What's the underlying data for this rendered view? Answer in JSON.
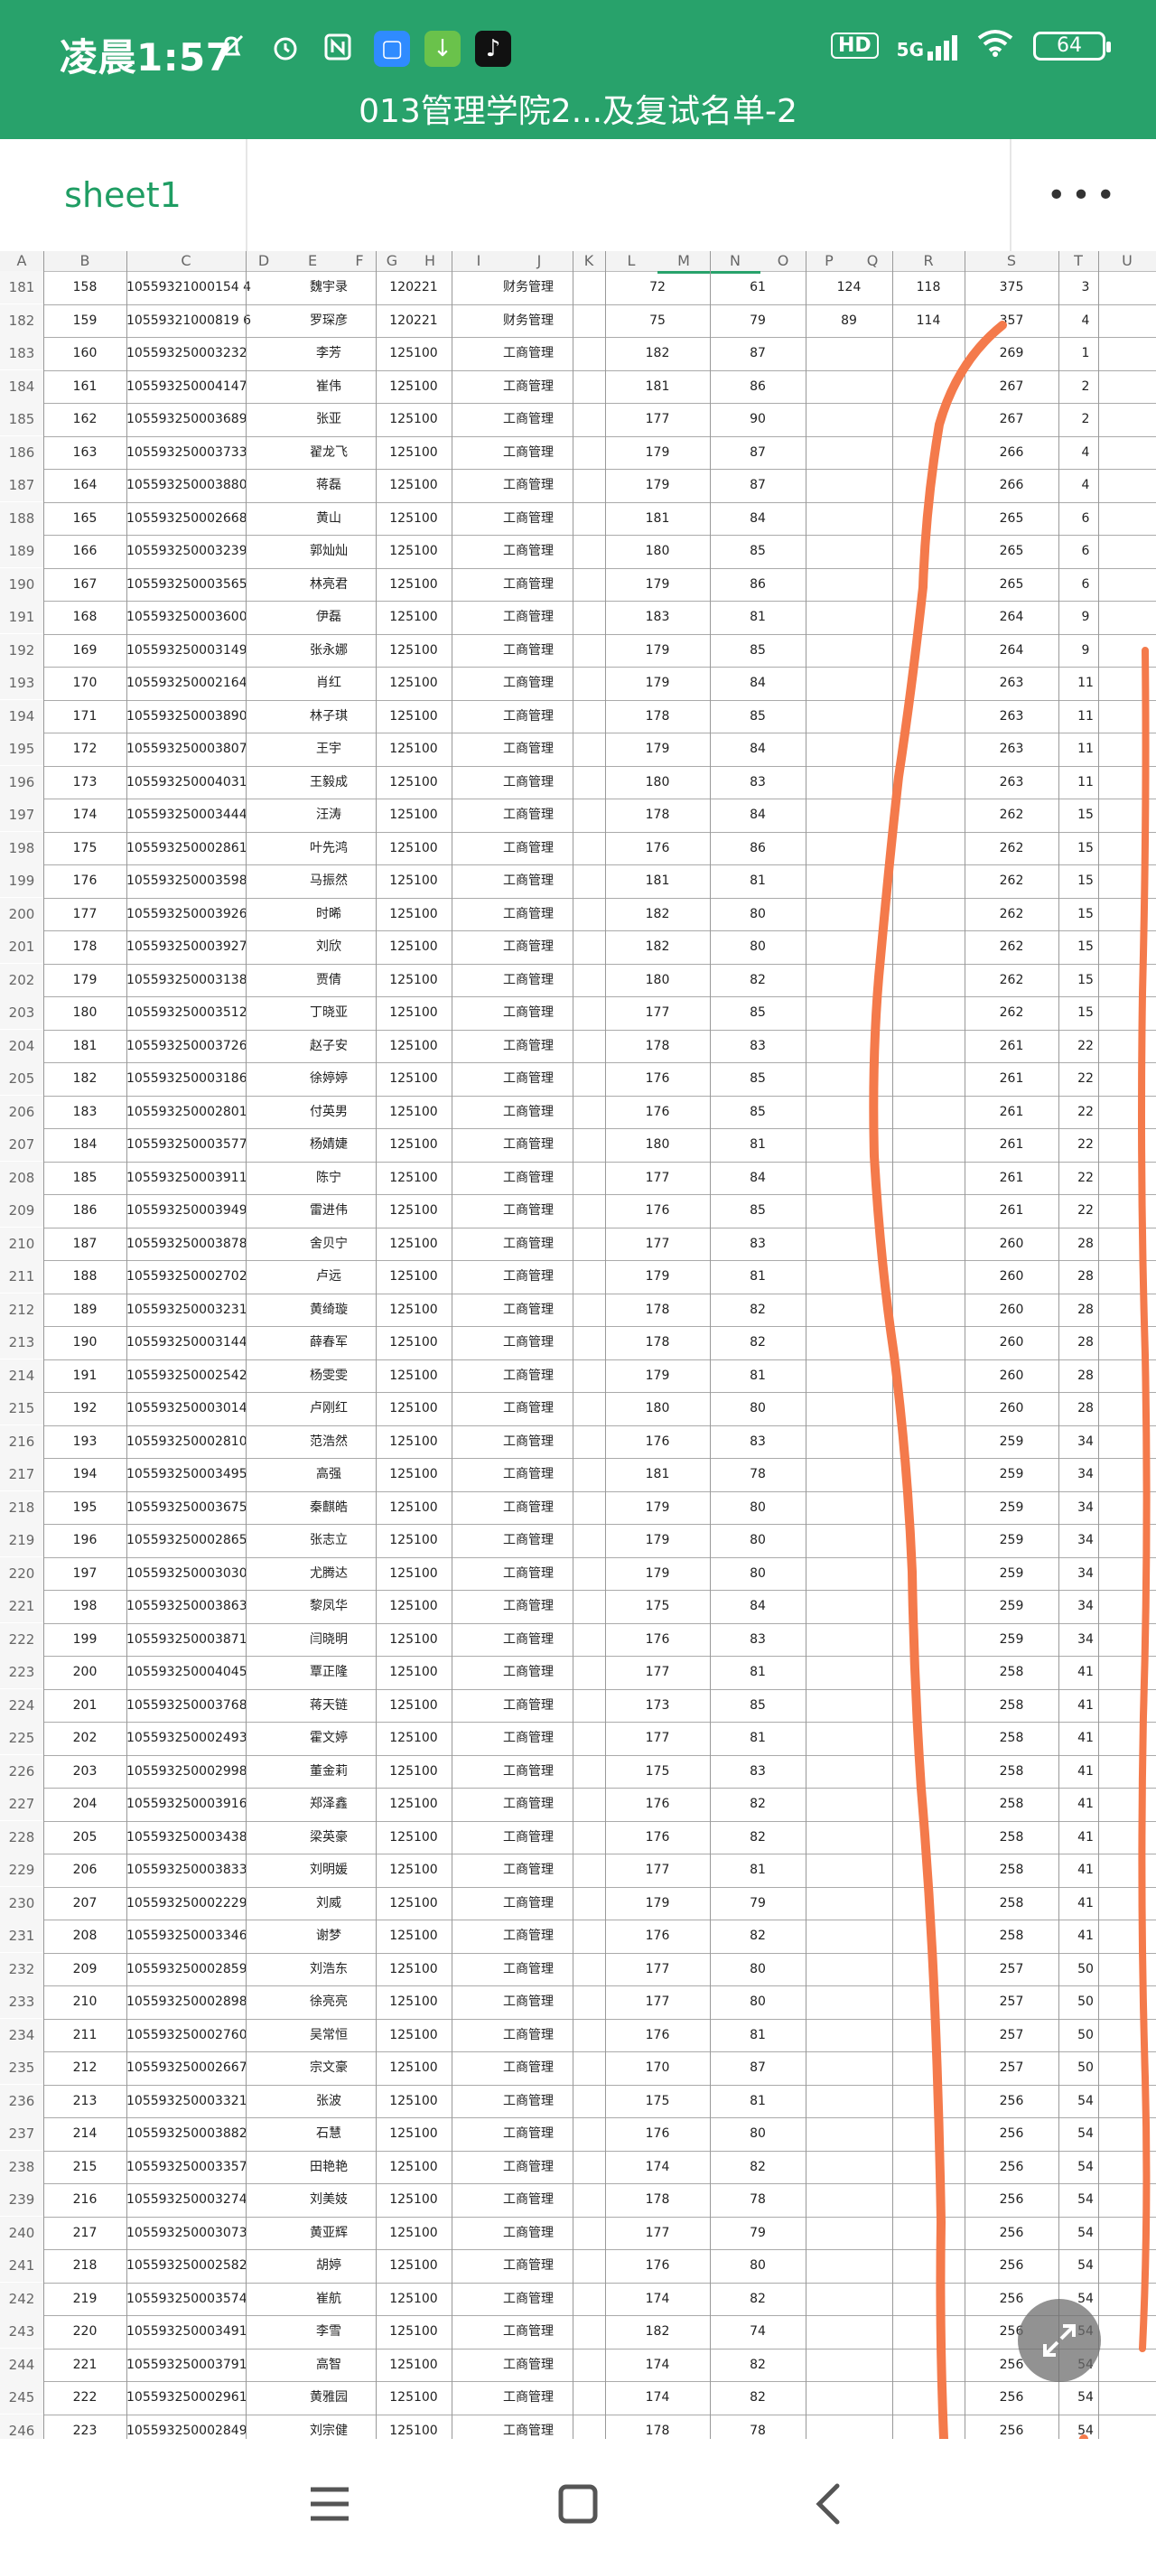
{
  "status_bar": {
    "time": "凌晨1:57",
    "network": "5G",
    "hd_label": "HD",
    "battery": "64",
    "icons": [
      "mute-bell-icon",
      "alarm-icon",
      "nfc-icon",
      "app-blue-icon",
      "download-app-icon",
      "tiktok-icon",
      "hd-icon",
      "signal-icon",
      "wifi-icon",
      "battery-icon"
    ]
  },
  "document": {
    "title": "013管理学院2...及复试名单-2"
  },
  "tabs": {
    "sheet_name": "sheet1",
    "more_label": "•••"
  },
  "columns": [
    "A",
    "B",
    "C",
    "D",
    "E",
    "F",
    "G",
    "H",
    "I",
    "J",
    "K",
    "L",
    "M",
    "N",
    "O",
    "P",
    "Q",
    "R",
    "S",
    "T",
    "U"
  ],
  "rows": [
    [
      "181",
      "158",
      "10559321000154 4",
      "魏宇录",
      "120221",
      "财务管理",
      "72",
      "61",
      "124",
      "118",
      "375",
      "3"
    ],
    [
      "182",
      "159",
      "10559321000819 6",
      "罗琛彦",
      "120221",
      "财务管理",
      "75",
      "79",
      "89",
      "114",
      "357",
      "4"
    ],
    [
      "183",
      "160",
      "105593250003232",
      "李芳",
      "125100",
      "工商管理",
      "182",
      "87",
      "",
      "",
      "269",
      "1"
    ],
    [
      "184",
      "161",
      "105593250004147",
      "崔伟",
      "125100",
      "工商管理",
      "181",
      "86",
      "",
      "",
      "267",
      "2"
    ],
    [
      "185",
      "162",
      "105593250003689",
      "张亚",
      "125100",
      "工商管理",
      "177",
      "90",
      "",
      "",
      "267",
      "2"
    ],
    [
      "186",
      "163",
      "105593250003733",
      "翟龙飞",
      "125100",
      "工商管理",
      "179",
      "87",
      "",
      "",
      "266",
      "4"
    ],
    [
      "187",
      "164",
      "105593250003880",
      "蒋磊",
      "125100",
      "工商管理",
      "179",
      "87",
      "",
      "",
      "266",
      "4"
    ],
    [
      "188",
      "165",
      "105593250002668",
      "黄山",
      "125100",
      "工商管理",
      "181",
      "84",
      "",
      "",
      "265",
      "6"
    ],
    [
      "189",
      "166",
      "105593250003239",
      "郭灿灿",
      "125100",
      "工商管理",
      "180",
      "85",
      "",
      "",
      "265",
      "6"
    ],
    [
      "190",
      "167",
      "105593250003565",
      "林亮君",
      "125100",
      "工商管理",
      "179",
      "86",
      "",
      "",
      "265",
      "6"
    ],
    [
      "191",
      "168",
      "105593250003600",
      "伊磊",
      "125100",
      "工商管理",
      "183",
      "81",
      "",
      "",
      "264",
      "9"
    ],
    [
      "192",
      "169",
      "105593250003149",
      "张永娜",
      "125100",
      "工商管理",
      "179",
      "85",
      "",
      "",
      "264",
      "9"
    ],
    [
      "193",
      "170",
      "105593250002164",
      "肖红",
      "125100",
      "工商管理",
      "179",
      "84",
      "",
      "",
      "263",
      "11"
    ],
    [
      "194",
      "171",
      "105593250003890",
      "林子琪",
      "125100",
      "工商管理",
      "178",
      "85",
      "",
      "",
      "263",
      "11"
    ],
    [
      "195",
      "172",
      "105593250003807",
      "王宇",
      "125100",
      "工商管理",
      "179",
      "84",
      "",
      "",
      "263",
      "11"
    ],
    [
      "196",
      "173",
      "105593250004031",
      "王毅成",
      "125100",
      "工商管理",
      "180",
      "83",
      "",
      "",
      "263",
      "11"
    ],
    [
      "197",
      "174",
      "105593250003444",
      "汪涛",
      "125100",
      "工商管理",
      "178",
      "84",
      "",
      "",
      "262",
      "15"
    ],
    [
      "198",
      "175",
      "105593250002861",
      "叶先鸿",
      "125100",
      "工商管理",
      "176",
      "86",
      "",
      "",
      "262",
      "15"
    ],
    [
      "199",
      "176",
      "105593250003598",
      "马振然",
      "125100",
      "工商管理",
      "181",
      "81",
      "",
      "",
      "262",
      "15"
    ],
    [
      "200",
      "177",
      "105593250003926",
      "时晞",
      "125100",
      "工商管理",
      "182",
      "80",
      "",
      "",
      "262",
      "15"
    ],
    [
      "201",
      "178",
      "105593250003927",
      "刘欣",
      "125100",
      "工商管理",
      "182",
      "80",
      "",
      "",
      "262",
      "15"
    ],
    [
      "202",
      "179",
      "105593250003138",
      "贾倩",
      "125100",
      "工商管理",
      "180",
      "82",
      "",
      "",
      "262",
      "15"
    ],
    [
      "203",
      "180",
      "105593250003512",
      "丁晓亚",
      "125100",
      "工商管理",
      "177",
      "85",
      "",
      "",
      "262",
      "15"
    ],
    [
      "204",
      "181",
      "105593250003726",
      "赵子安",
      "125100",
      "工商管理",
      "178",
      "83",
      "",
      "",
      "261",
      "22"
    ],
    [
      "205",
      "182",
      "105593250003186",
      "徐婷婷",
      "125100",
      "工商管理",
      "176",
      "85",
      "",
      "",
      "261",
      "22"
    ],
    [
      "206",
      "183",
      "105593250002801",
      "付英男",
      "125100",
      "工商管理",
      "176",
      "85",
      "",
      "",
      "261",
      "22"
    ],
    [
      "207",
      "184",
      "105593250003577",
      "杨婧婕",
      "125100",
      "工商管理",
      "180",
      "81",
      "",
      "",
      "261",
      "22"
    ],
    [
      "208",
      "185",
      "105593250003911",
      "陈宁",
      "125100",
      "工商管理",
      "177",
      "84",
      "",
      "",
      "261",
      "22"
    ],
    [
      "209",
      "186",
      "105593250003949",
      "雷进伟",
      "125100",
      "工商管理",
      "176",
      "85",
      "",
      "",
      "261",
      "22"
    ],
    [
      "210",
      "187",
      "105593250003878",
      "舍贝宁",
      "125100",
      "工商管理",
      "177",
      "83",
      "",
      "",
      "260",
      "28"
    ],
    [
      "211",
      "188",
      "105593250002702",
      "卢远",
      "125100",
      "工商管理",
      "179",
      "81",
      "",
      "",
      "260",
      "28"
    ],
    [
      "212",
      "189",
      "105593250003231",
      "黄绮璇",
      "125100",
      "工商管理",
      "178",
      "82",
      "",
      "",
      "260",
      "28"
    ],
    [
      "213",
      "190",
      "105593250003144",
      "薛春军",
      "125100",
      "工商管理",
      "178",
      "82",
      "",
      "",
      "260",
      "28"
    ],
    [
      "214",
      "191",
      "105593250002542",
      "杨雯雯",
      "125100",
      "工商管理",
      "179",
      "81",
      "",
      "",
      "260",
      "28"
    ],
    [
      "215",
      "192",
      "105593250003014",
      "卢刚红",
      "125100",
      "工商管理",
      "180",
      "80",
      "",
      "",
      "260",
      "28"
    ],
    [
      "216",
      "193",
      "105593250002810",
      "范浩然",
      "125100",
      "工商管理",
      "176",
      "83",
      "",
      "",
      "259",
      "34"
    ],
    [
      "217",
      "194",
      "105593250003495",
      "高强",
      "125100",
      "工商管理",
      "181",
      "78",
      "",
      "",
      "259",
      "34"
    ],
    [
      "218",
      "195",
      "105593250003675",
      "秦麒皓",
      "125100",
      "工商管理",
      "179",
      "80",
      "",
      "",
      "259",
      "34"
    ],
    [
      "219",
      "196",
      "105593250002865",
      "张志立",
      "125100",
      "工商管理",
      "179",
      "80",
      "",
      "",
      "259",
      "34"
    ],
    [
      "220",
      "197",
      "105593250003030",
      "尤腾达",
      "125100",
      "工商管理",
      "179",
      "80",
      "",
      "",
      "259",
      "34"
    ],
    [
      "221",
      "198",
      "105593250003863",
      "黎凤华",
      "125100",
      "工商管理",
      "175",
      "84",
      "",
      "",
      "259",
      "34"
    ],
    [
      "222",
      "199",
      "105593250003871",
      "闫晓明",
      "125100",
      "工商管理",
      "176",
      "83",
      "",
      "",
      "259",
      "34"
    ],
    [
      "223",
      "200",
      "105593250004045",
      "覃正隆",
      "125100",
      "工商管理",
      "177",
      "81",
      "",
      "",
      "258",
      "41"
    ],
    [
      "224",
      "201",
      "105593250003768",
      "蒋天链",
      "125100",
      "工商管理",
      "173",
      "85",
      "",
      "",
      "258",
      "41"
    ],
    [
      "225",
      "202",
      "105593250002493",
      "霍文婷",
      "125100",
      "工商管理",
      "177",
      "81",
      "",
      "",
      "258",
      "41"
    ],
    [
      "226",
      "203",
      "105593250002998",
      "董金莉",
      "125100",
      "工商管理",
      "175",
      "83",
      "",
      "",
      "258",
      "41"
    ],
    [
      "227",
      "204",
      "105593250003916",
      "郑泽鑫",
      "125100",
      "工商管理",
      "176",
      "82",
      "",
      "",
      "258",
      "41"
    ],
    [
      "228",
      "205",
      "105593250003438",
      "梁英豪",
      "125100",
      "工商管理",
      "176",
      "82",
      "",
      "",
      "258",
      "41"
    ],
    [
      "229",
      "206",
      "105593250003833",
      "刘明媛",
      "125100",
      "工商管理",
      "177",
      "81",
      "",
      "",
      "258",
      "41"
    ],
    [
      "230",
      "207",
      "105593250002229",
      "刘威",
      "125100",
      "工商管理",
      "179",
      "79",
      "",
      "",
      "258",
      "41"
    ],
    [
      "231",
      "208",
      "105593250003346",
      "谢梦",
      "125100",
      "工商管理",
      "176",
      "82",
      "",
      "",
      "258",
      "41"
    ],
    [
      "232",
      "209",
      "105593250002859",
      "刘浩东",
      "125100",
      "工商管理",
      "177",
      "80",
      "",
      "",
      "257",
      "50"
    ],
    [
      "233",
      "210",
      "105593250002898",
      "徐亮亮",
      "125100",
      "工商管理",
      "177",
      "80",
      "",
      "",
      "257",
      "50"
    ],
    [
      "234",
      "211",
      "105593250002760",
      "吴常恒",
      "125100",
      "工商管理",
      "176",
      "81",
      "",
      "",
      "257",
      "50"
    ],
    [
      "235",
      "212",
      "105593250002667",
      "宗文豪",
      "125100",
      "工商管理",
      "170",
      "87",
      "",
      "",
      "257",
      "50"
    ],
    [
      "236",
      "213",
      "105593250003321",
      "张波",
      "125100",
      "工商管理",
      "175",
      "81",
      "",
      "",
      "256",
      "54"
    ],
    [
      "237",
      "214",
      "105593250003882",
      "石慧",
      "125100",
      "工商管理",
      "176",
      "80",
      "",
      "",
      "256",
      "54"
    ],
    [
      "238",
      "215",
      "105593250003357",
      "田艳艳",
      "125100",
      "工商管理",
      "174",
      "82",
      "",
      "",
      "256",
      "54"
    ],
    [
      "239",
      "216",
      "105593250003274",
      "刘美妓",
      "125100",
      "工商管理",
      "178",
      "78",
      "",
      "",
      "256",
      "54"
    ],
    [
      "240",
      "217",
      "105593250003073",
      "黄亚辉",
      "125100",
      "工商管理",
      "177",
      "79",
      "",
      "",
      "256",
      "54"
    ],
    [
      "241",
      "218",
      "105593250002582",
      "胡婷",
      "125100",
      "工商管理",
      "176",
      "80",
      "",
      "",
      "256",
      "54"
    ],
    [
      "242",
      "219",
      "105593250003574",
      "崔航",
      "125100",
      "工商管理",
      "174",
      "82",
      "",
      "",
      "256",
      "54"
    ],
    [
      "243",
      "220",
      "105593250003491",
      "李雪",
      "125100",
      "工商管理",
      "182",
      "74",
      "",
      "",
      "256",
      "54"
    ],
    [
      "244",
      "221",
      "105593250003791",
      "高智",
      "125100",
      "工商管理",
      "174",
      "82",
      "",
      "",
      "256",
      "54"
    ],
    [
      "245",
      "222",
      "105593250002961",
      "黄雅园",
      "125100",
      "工商管理",
      "174",
      "82",
      "",
      "",
      "256",
      "54"
    ],
    [
      "246",
      "223",
      "105593250002849",
      "刘宗健",
      "125100",
      "工商管理",
      "178",
      "78",
      "",
      "",
      "256",
      "54"
    ]
  ],
  "nav_bar": {
    "icons": [
      "menu-icon",
      "home-icon",
      "back-icon"
    ]
  },
  "colors": {
    "accent": "#28a26b",
    "sheet_tab_text": "#1f9d63",
    "scribble": "#f47a4b"
  }
}
